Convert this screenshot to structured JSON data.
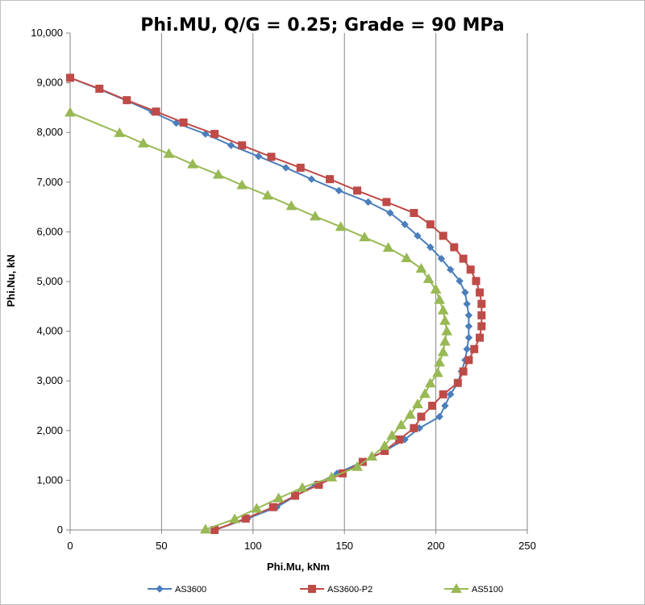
{
  "chart_data": {
    "type": "line",
    "title": "Phi.MU, Q/G = 0.25; Grade = 90 MPa",
    "xlabel": "Phi.Mu, kNm",
    "ylabel": "Phi.Nu, kN",
    "xlim": [
      0,
      250
    ],
    "ylim": [
      0,
      10000
    ],
    "xticks": [
      0,
      50,
      100,
      150,
      200,
      250
    ],
    "yticks": [
      0,
      1000,
      2000,
      3000,
      4000,
      5000,
      6000,
      7000,
      8000,
      9000,
      10000
    ],
    "xtick_labels": [
      "0",
      "50",
      "100",
      "150",
      "200",
      "250"
    ],
    "ytick_labels": [
      "0",
      "1,000",
      "2,000",
      "3,000",
      "4,000",
      "5,000",
      "6,000",
      "7,000",
      "8,000",
      "9,000",
      "10,000"
    ],
    "grid": "vertical",
    "legend_position": "bottom",
    "series": [
      {
        "name": "AS3600",
        "color": "#4a7ebb",
        "marker": "diamond",
        "points": [
          [
            0,
            9100
          ],
          [
            16,
            8870
          ],
          [
            31,
            8640
          ],
          [
            45,
            8410
          ],
          [
            58,
            8190
          ],
          [
            74,
            7970
          ],
          [
            88,
            7740
          ],
          [
            103,
            7520
          ],
          [
            118,
            7290
          ],
          [
            132,
            7060
          ],
          [
            147,
            6830
          ],
          [
            163,
            6600
          ],
          [
            175,
            6380
          ],
          [
            183,
            6150
          ],
          [
            190,
            5920
          ],
          [
            197,
            5690
          ],
          [
            203,
            5460
          ],
          [
            208,
            5240
          ],
          [
            213,
            5010
          ],
          [
            216,
            4780
          ],
          [
            217,
            4550
          ],
          [
            218,
            4320
          ],
          [
            218,
            4100
          ],
          [
            218,
            3870
          ],
          [
            217,
            3640
          ],
          [
            216,
            3420
          ],
          [
            214,
            3190
          ],
          [
            212,
            2960
          ],
          [
            208,
            2730
          ],
          [
            205,
            2500
          ],
          [
            202,
            2280
          ],
          [
            191,
            2050
          ],
          [
            183,
            1820
          ],
          [
            172,
            1590
          ],
          [
            160,
            1370
          ],
          [
            146,
            1140
          ],
          [
            134,
            910
          ],
          [
            123,
            680
          ],
          [
            113,
            460
          ],
          [
            97,
            230
          ],
          [
            79,
            0
          ]
        ]
      },
      {
        "name": "AS3600-P2",
        "color": "#be4b48",
        "marker": "square",
        "points": [
          [
            0,
            9100
          ],
          [
            16,
            8880
          ],
          [
            31,
            8650
          ],
          [
            47,
            8420
          ],
          [
            62,
            8200
          ],
          [
            79,
            7970
          ],
          [
            94,
            7740
          ],
          [
            110,
            7510
          ],
          [
            126,
            7290
          ],
          [
            142,
            7060
          ],
          [
            157,
            6830
          ],
          [
            173,
            6600
          ],
          [
            188,
            6380
          ],
          [
            197,
            6150
          ],
          [
            204,
            5920
          ],
          [
            210,
            5690
          ],
          [
            215,
            5460
          ],
          [
            219,
            5240
          ],
          [
            222,
            5010
          ],
          [
            224,
            4780
          ],
          [
            225,
            4550
          ],
          [
            225,
            4320
          ],
          [
            225,
            4100
          ],
          [
            224,
            3870
          ],
          [
            221,
            3640
          ],
          [
            218,
            3420
          ],
          [
            215,
            3190
          ],
          [
            212,
            2960
          ],
          [
            204,
            2730
          ],
          [
            198,
            2500
          ],
          [
            192,
            2280
          ],
          [
            188,
            2050
          ],
          [
            180,
            1820
          ],
          [
            172,
            1590
          ],
          [
            160,
            1370
          ],
          [
            149,
            1140
          ],
          [
            136,
            910
          ],
          [
            123,
            690
          ],
          [
            111,
            460
          ],
          [
            96,
            230
          ],
          [
            79,
            0
          ]
        ]
      },
      {
        "name": "AS5100",
        "color": "#98b954",
        "marker": "triangle",
        "points": [
          [
            0,
            8400
          ],
          [
            27,
            7990
          ],
          [
            40,
            7780
          ],
          [
            54,
            7570
          ],
          [
            67,
            7360
          ],
          [
            81,
            7150
          ],
          [
            94,
            6940
          ],
          [
            108,
            6730
          ],
          [
            121,
            6520
          ],
          [
            134,
            6310
          ],
          [
            148,
            6100
          ],
          [
            161,
            5890
          ],
          [
            174,
            5680
          ],
          [
            184,
            5470
          ],
          [
            192,
            5260
          ],
          [
            196,
            5050
          ],
          [
            200,
            4840
          ],
          [
            202,
            4630
          ],
          [
            204,
            4420
          ],
          [
            205,
            4210
          ],
          [
            206,
            4000
          ],
          [
            205,
            3790
          ],
          [
            204,
            3580
          ],
          [
            202,
            3370
          ],
          [
            201,
            3160
          ],
          [
            197,
            2950
          ],
          [
            194,
            2740
          ],
          [
            190,
            2530
          ],
          [
            186,
            2320
          ],
          [
            181,
            2110
          ],
          [
            176,
            1900
          ],
          [
            172,
            1690
          ],
          [
            165,
            1480
          ],
          [
            157,
            1270
          ],
          [
            143,
            1060
          ],
          [
            127,
            850
          ],
          [
            114,
            640
          ],
          [
            102,
            430
          ],
          [
            90,
            220
          ],
          [
            74,
            10
          ]
        ]
      }
    ]
  }
}
